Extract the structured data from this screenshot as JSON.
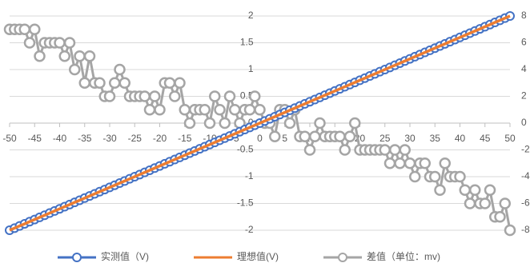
{
  "chart_data": {
    "type": "line",
    "x": [
      -50,
      -49,
      -48,
      -47,
      -46,
      -45,
      -44,
      -43,
      -42,
      -41,
      -40,
      -39,
      -38,
      -37,
      -36,
      -35,
      -34,
      -33,
      -32,
      -31,
      -30,
      -29,
      -28,
      -27,
      -26,
      -25,
      -24,
      -23,
      -22,
      -21,
      -20,
      -19,
      -18,
      -17,
      -16,
      -15,
      -14,
      -13,
      -12,
      -11,
      -10,
      -9,
      -8,
      -7,
      -6,
      -5,
      -4,
      -3,
      -2,
      -1,
      0,
      1,
      2,
      3,
      4,
      5,
      6,
      7,
      8,
      9,
      10,
      11,
      12,
      13,
      14,
      15,
      16,
      17,
      18,
      19,
      20,
      21,
      22,
      23,
      24,
      25,
      26,
      27,
      28,
      29,
      30,
      31,
      32,
      33,
      34,
      35,
      36,
      37,
      38,
      39,
      40,
      41,
      42,
      43,
      44,
      45,
      46,
      47,
      48,
      49,
      50
    ],
    "series": [
      {
        "name": "差值（单位：mv)",
        "color": "#a5a5a5",
        "axis": "y2",
        "marker": true,
        "values": [
          7,
          7,
          7,
          7,
          6,
          7,
          5,
          6,
          6,
          6,
          6,
          5,
          6,
          4,
          5,
          3,
          5,
          3,
          3,
          2,
          2,
          3,
          4,
          3,
          2,
          2,
          2,
          2,
          1,
          2,
          1,
          3,
          3,
          2,
          3,
          1,
          0,
          1,
          1,
          1,
          0,
          2,
          1,
          0,
          2,
          1,
          0,
          1,
          1,
          2,
          1,
          0,
          0,
          -1,
          1,
          1,
          0,
          1,
          -1,
          -1,
          -2,
          -1,
          0,
          -1,
          -1,
          -1,
          -1,
          -2,
          -1,
          0,
          -2,
          -2,
          -2,
          -2,
          -2,
          -2,
          -3,
          -2,
          -3,
          -2,
          -3,
          -4,
          -3,
          -3,
          -4,
          -4,
          -5,
          -3,
          -4,
          -4,
          -4,
          -5,
          -6,
          -5,
          -6,
          -6,
          -5,
          -7,
          -7,
          -6,
          -8
        ]
      },
      {
        "name": "实测值（V)",
        "color": "#4472c4",
        "marker": true,
        "values": [
          -2,
          -1.96,
          -1.92,
          -1.88,
          -1.84,
          -1.8,
          -1.76,
          -1.72,
          -1.68,
          -1.64,
          -1.6,
          -1.56,
          -1.52,
          -1.48,
          -1.44,
          -1.4,
          -1.36,
          -1.32,
          -1.28,
          -1.24,
          -1.2,
          -1.16,
          -1.12,
          -1.08,
          -1.04,
          -1,
          -0.96,
          -0.92,
          -0.88,
          -0.84,
          -0.8,
          -0.76,
          -0.72,
          -0.68,
          -0.64,
          -0.6,
          -0.56,
          -0.52,
          -0.48,
          -0.44,
          -0.4,
          -0.36,
          -0.32,
          -0.28,
          -0.24,
          -0.2,
          -0.16,
          -0.12,
          -0.08,
          -0.04,
          0,
          0.04,
          0.08,
          0.12,
          0.16,
          0.2,
          0.24,
          0.28,
          0.32,
          0.36,
          0.4,
          0.44,
          0.48,
          0.52,
          0.56,
          0.6,
          0.64,
          0.68,
          0.72,
          0.76,
          0.8,
          0.84,
          0.88,
          0.92,
          0.96,
          1,
          1.04,
          1.08,
          1.12,
          1.16,
          1.2,
          1.24,
          1.28,
          1.32,
          1.36,
          1.4,
          1.44,
          1.48,
          1.52,
          1.56,
          1.6,
          1.64,
          1.68,
          1.72,
          1.76,
          1.8,
          1.84,
          1.88,
          1.92,
          1.96,
          2
        ]
      },
      {
        "name": "理想值(V)",
        "color": "#ed7d31",
        "marker": false,
        "values": [
          -2,
          -1.96,
          -1.92,
          -1.88,
          -1.84,
          -1.8,
          -1.76,
          -1.72,
          -1.68,
          -1.64,
          -1.6,
          -1.56,
          -1.52,
          -1.48,
          -1.44,
          -1.4,
          -1.36,
          -1.32,
          -1.28,
          -1.24,
          -1.2,
          -1.16,
          -1.12,
          -1.08,
          -1.04,
          -1,
          -0.96,
          -0.92,
          -0.88,
          -0.84,
          -0.8,
          -0.76,
          -0.72,
          -0.68,
          -0.64,
          -0.6,
          -0.56,
          -0.52,
          -0.48,
          -0.44,
          -0.4,
          -0.36,
          -0.32,
          -0.28,
          -0.24,
          -0.2,
          -0.16,
          -0.12,
          -0.08,
          -0.04,
          0,
          0.04,
          0.08,
          0.12,
          0.16,
          0.2,
          0.24,
          0.28,
          0.32,
          0.36,
          0.4,
          0.44,
          0.48,
          0.52,
          0.56,
          0.6,
          0.64,
          0.68,
          0.72,
          0.76,
          0.8,
          0.84,
          0.88,
          0.92,
          0.96,
          1,
          1.04,
          1.08,
          1.12,
          1.16,
          1.2,
          1.24,
          1.28,
          1.32,
          1.36,
          1.4,
          1.44,
          1.48,
          1.52,
          1.56,
          1.6,
          1.64,
          1.68,
          1.72,
          1.76,
          1.8,
          1.84,
          1.88,
          1.92,
          1.96,
          2
        ]
      }
    ],
    "legend_order": [
      1,
      2,
      0
    ],
    "xlim": [
      -50,
      50
    ],
    "xticks": [
      -50,
      -45,
      -40,
      -35,
      -30,
      -25,
      -20,
      -15,
      -10,
      -5,
      0,
      5,
      10,
      15,
      20,
      25,
      30,
      35,
      40,
      45,
      50
    ],
    "ylim": [
      -2,
      2
    ],
    "yticks": [
      -2,
      -1.5,
      -1,
      -0.5,
      0,
      0.5,
      1,
      1.5,
      2
    ],
    "y2lim": [
      -8,
      8
    ],
    "y2ticks": [
      -8,
      -6,
      -4,
      -2,
      0,
      2,
      4,
      6,
      8
    ],
    "grid": true,
    "legend": "bottom"
  }
}
